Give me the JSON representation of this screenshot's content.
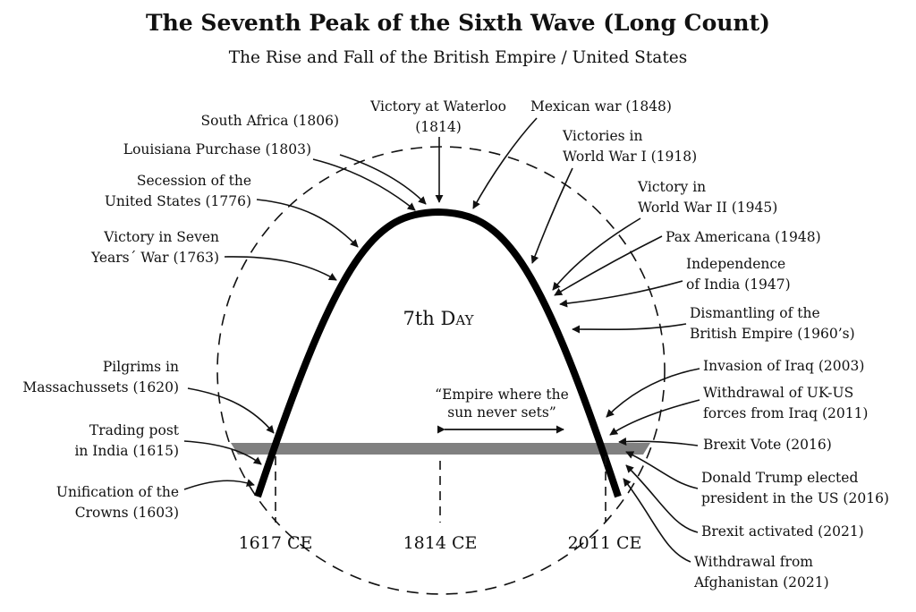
{
  "title": "The Seventh Peak of the Sixth Wave (Long Count)",
  "subtitle": "The Rise and Fall of the British Empire / United States",
  "center_label": {
    "main": "7th ",
    "smallcaps_initial": "D",
    "smallcaps_rest": "AY"
  },
  "empire_label": [
    "“Empire where the",
    "sun never sets”"
  ],
  "ticks": [
    "1617 CE",
    "1814 CE",
    "2011 CE"
  ],
  "left_events": [
    {
      "lines": [
        "Unification of the",
        "Crowns (1603)"
      ]
    },
    {
      "lines": [
        "Trading post",
        "in India (1615)"
      ]
    },
    {
      "lines": [
        "Pilgrims in",
        "Massachussets (1620)"
      ]
    },
    {
      "lines": [
        "Victory in Seven",
        "Years´ War (1763)"
      ]
    },
    {
      "lines": [
        "Secession of the",
        "United States (1776)"
      ]
    },
    {
      "lines": [
        "Louisiana Purchase (1803)"
      ]
    },
    {
      "lines": [
        "South Africa (1806)"
      ]
    }
  ],
  "top_events": [
    {
      "lines": [
        "Victory at Waterloo",
        "(1814)"
      ]
    },
    {
      "lines": [
        "Mexican war (1848)"
      ]
    }
  ],
  "right_events": [
    {
      "lines": [
        "Victories in",
        "World War I (1918)"
      ]
    },
    {
      "lines": [
        "Victory in",
        "World War II (1945)"
      ]
    },
    {
      "lines": [
        "Pax Americana (1948)"
      ]
    },
    {
      "lines": [
        "Independence",
        "of India (1947)"
      ]
    },
    {
      "lines": [
        "Dismantling of the",
        "British Empire (1960’s)"
      ]
    },
    {
      "lines": [
        "Invasion of Iraq (2003)"
      ]
    },
    {
      "lines": [
        "Withdrawal of UK-US",
        "forces from Iraq (2011)"
      ]
    },
    {
      "lines": [
        "Brexit Vote (2016)"
      ]
    },
    {
      "lines": [
        "Donald Trump elected",
        "president in the US (2016)"
      ]
    },
    {
      "lines": [
        "Brexit activated (2021)"
      ]
    },
    {
      "lines": [
        "Withdrawal from",
        "Afghanistan (2021)"
      ]
    }
  ]
}
